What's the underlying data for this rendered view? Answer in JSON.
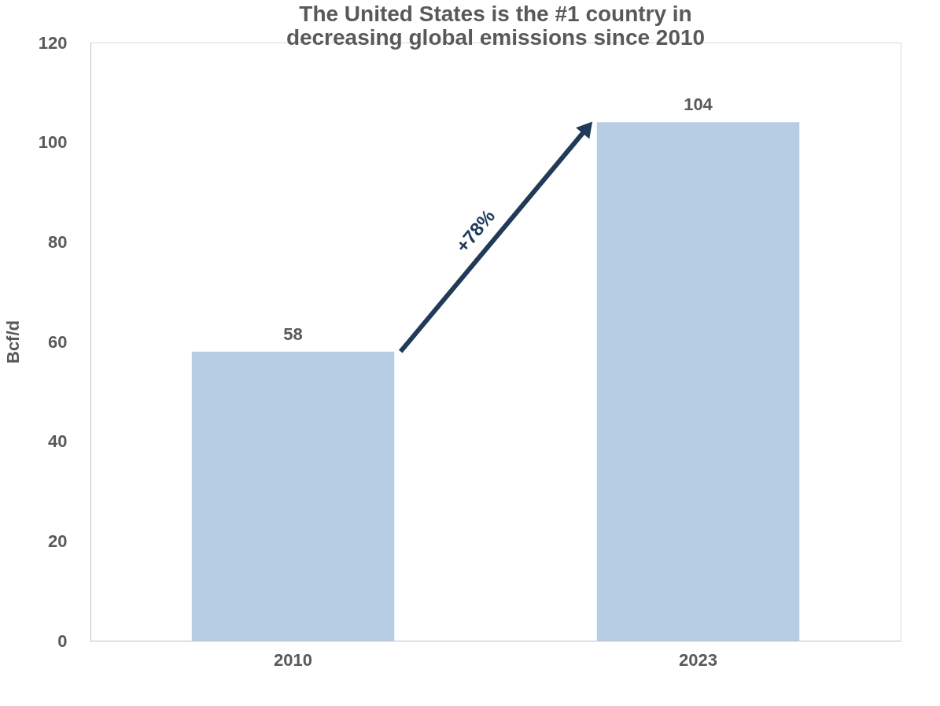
{
  "chart_data": {
    "type": "bar",
    "title": "The United States is the #1 country in decreasing global emissions since 2010",
    "ylabel": "Bcf/d",
    "categories": [
      "2010",
      "2023"
    ],
    "values": [
      58,
      104
    ],
    "color": "#b7cde3",
    "ylim": [
      0,
      120
    ],
    "yticks": [
      0,
      20,
      40,
      60,
      80,
      100,
      120
    ],
    "data_labels": true,
    "annotations": [
      "+78%"
    ]
  }
}
